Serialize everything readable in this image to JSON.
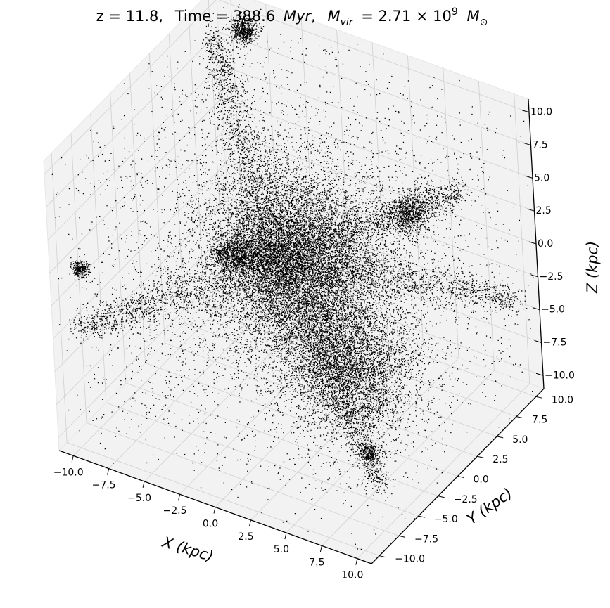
{
  "chart_data": {
    "type": "scatter",
    "projection": "3d",
    "title": {
      "z_part": "z = 11.8,",
      "time_prefix": "Time = 388.6",
      "time_unit": "Myr",
      "mass_sym": "M",
      "mass_sub": "vir",
      "mass_eq": "= 2.71 × 10",
      "mass_exp": "9",
      "mass_unit_sym": "M",
      "mass_unit_sub": "⊙"
    },
    "xlabel": "X (kpc)",
    "ylabel": "Y (kpc)",
    "zlabel": "Z (kpc)",
    "xlim": [
      -11,
      11
    ],
    "ylim": [
      -11,
      11
    ],
    "zlim": [
      -11,
      11
    ],
    "x_ticks": [
      "−10.0",
      "−7.5",
      "−5.0",
      "−2.5",
      "0.0",
      "2.5",
      "5.0",
      "7.5",
      "10.0"
    ],
    "y_ticks": [
      "−10.0",
      "−7.5",
      "−5.0",
      "−2.5",
      "0.0",
      "2.5",
      "5.0",
      "7.5",
      "10.0"
    ],
    "z_ticks": [
      "−10.0",
      "−7.5",
      "−5.0",
      "−2.5",
      "0.0",
      "2.5",
      "5.0",
      "7.5",
      "10.0"
    ],
    "grid": true,
    "marker_color": "#000000",
    "pane_color": "#f2f2f2",
    "particle_structures": [
      {
        "name": "central-halo",
        "center": [
          0,
          0,
          1
        ],
        "sigma": [
          2.6,
          2.6,
          3.2
        ]
      },
      {
        "name": "lower-extension",
        "center": [
          2.5,
          2,
          -7
        ],
        "sigma": [
          2.0,
          1.8,
          2.5
        ]
      },
      {
        "name": "subhalo-upper-left",
        "center": [
          -8,
          9,
          10
        ],
        "sigma": [
          0.4,
          0.4,
          0.4
        ]
      },
      {
        "name": "subhalo-far-left",
        "center": [
          -10,
          -9,
          2
        ],
        "sigma": [
          0.25,
          0.25,
          0.25
        ]
      },
      {
        "name": "subhalo-right",
        "center": [
          5,
          6,
          3
        ],
        "sigma": [
          0.6,
          0.6,
          0.6
        ]
      },
      {
        "name": "subhalo-bottom",
        "center": [
          6,
          -2,
          -10
        ],
        "sigma": [
          0.3,
          0.3,
          0.3
        ]
      }
    ],
    "filaments": [
      {
        "from": [
          -1,
          0,
          1
        ],
        "to": [
          10,
          10,
          -4
        ]
      },
      {
        "from": [
          -1,
          0,
          1
        ],
        "to": [
          -11,
          10,
          8
        ]
      },
      {
        "from": [
          -1,
          0,
          1
        ],
        "to": [
          -10,
          -10,
          -2
        ]
      },
      {
        "from": [
          -1,
          0,
          1
        ],
        "to": [
          10,
          4,
          8
        ]
      },
      {
        "from": [
          -1,
          0,
          1
        ],
        "to": [
          9,
          -6,
          -9
        ]
      },
      {
        "from": [
          -1,
          0,
          1
        ],
        "to": [
          -10,
          8,
          -7
        ]
      }
    ]
  }
}
